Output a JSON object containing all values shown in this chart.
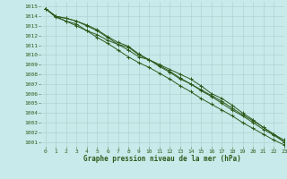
{
  "title": "Graphe pression niveau de la mer (hPa)",
  "bg_color": "#c8eaea",
  "grid_color": "#b0cccc",
  "line_color": "#2d5a1b",
  "xlim": [
    -0.5,
    23
  ],
  "ylim": [
    1000.5,
    1015.5
  ],
  "yticks": [
    1001,
    1002,
    1003,
    1004,
    1005,
    1006,
    1007,
    1008,
    1009,
    1010,
    1011,
    1012,
    1013,
    1014,
    1015
  ],
  "xticks": [
    0,
    1,
    2,
    3,
    4,
    5,
    6,
    7,
    8,
    9,
    10,
    11,
    12,
    13,
    14,
    15,
    16,
    17,
    18,
    19,
    20,
    21,
    22,
    23
  ],
  "series": [
    [
      1014.8,
      1013.9,
      1013.5,
      1013.2,
      1012.5,
      1012.1,
      1011.5,
      1011.1,
      1010.5,
      1009.8,
      1009.5,
      1009.0,
      1008.5,
      1008.0,
      1007.5,
      1006.8,
      1006.0,
      1005.5,
      1004.8,
      1004.0,
      1003.3,
      1002.5,
      1001.8,
      1001.0
    ],
    [
      1014.8,
      1014.0,
      1013.8,
      1013.5,
      1013.1,
      1012.6,
      1011.9,
      1011.3,
      1010.9,
      1010.1,
      1009.5,
      1008.9,
      1008.3,
      1007.6,
      1007.0,
      1006.4,
      1005.8,
      1005.2,
      1004.5,
      1003.8,
      1003.2,
      1002.5,
      1001.8,
      1001.2
    ],
    [
      1014.8,
      1014.0,
      1013.8,
      1013.5,
      1013.0,
      1012.5,
      1011.8,
      1011.1,
      1010.8,
      1010.0,
      1009.5,
      1008.8,
      1008.2,
      1007.5,
      1007.0,
      1006.3,
      1005.7,
      1005.0,
      1004.3,
      1003.7,
      1003.0,
      1002.3,
      1001.7,
      1001.0
    ],
    [
      1014.8,
      1014.0,
      1013.5,
      1013.0,
      1012.5,
      1011.8,
      1011.2,
      1010.5,
      1009.8,
      1009.2,
      1008.7,
      1008.1,
      1007.5,
      1006.8,
      1006.2,
      1005.5,
      1004.9,
      1004.3,
      1003.7,
      1003.0,
      1002.4,
      1001.8,
      1001.2,
      1000.7
    ]
  ]
}
